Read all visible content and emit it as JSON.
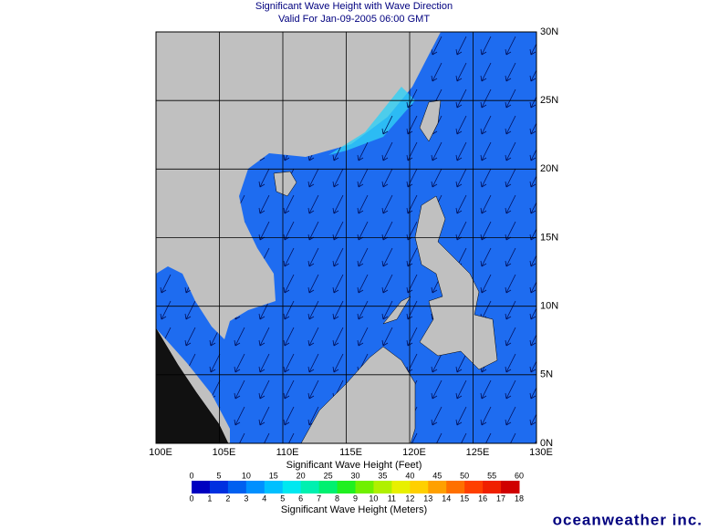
{
  "title": "Significant Wave Height with Wave Direction",
  "subtitle": "Valid For Jan-09-2005 06:00 GMT",
  "map": {
    "xlim": [
      100,
      130
    ],
    "ylim": [
      0,
      30
    ],
    "xticks": [
      {
        "value": 100,
        "label": "100E"
      },
      {
        "value": 105,
        "label": "105E"
      },
      {
        "value": 110,
        "label": "110E"
      },
      {
        "value": 115,
        "label": "115E"
      },
      {
        "value": 120,
        "label": "120E"
      },
      {
        "value": 125,
        "label": "125E"
      },
      {
        "value": 130,
        "label": "130E"
      }
    ],
    "yticks": [
      {
        "value": 0,
        "label": "0N"
      },
      {
        "value": 5,
        "label": "5N"
      },
      {
        "value": 10,
        "label": "10N"
      },
      {
        "value": 15,
        "label": "15N"
      },
      {
        "value": 20,
        "label": "20N"
      },
      {
        "value": 25,
        "label": "25N"
      },
      {
        "value": 30,
        "label": "30N"
      }
    ]
  },
  "colorbar": {
    "feet_label": "Significant Wave Height (Feet)",
    "feet_ticks": [
      0,
      5,
      10,
      15,
      20,
      25,
      30,
      35,
      40,
      45,
      50,
      55,
      60
    ],
    "meters_label": "Significant Wave Height (Meters)",
    "meters_ticks": [
      0,
      1,
      2,
      3,
      4,
      5,
      6,
      7,
      8,
      9,
      10,
      11,
      12,
      13,
      14,
      15,
      16,
      17,
      18
    ]
  },
  "logo": "oceanweather inc."
}
